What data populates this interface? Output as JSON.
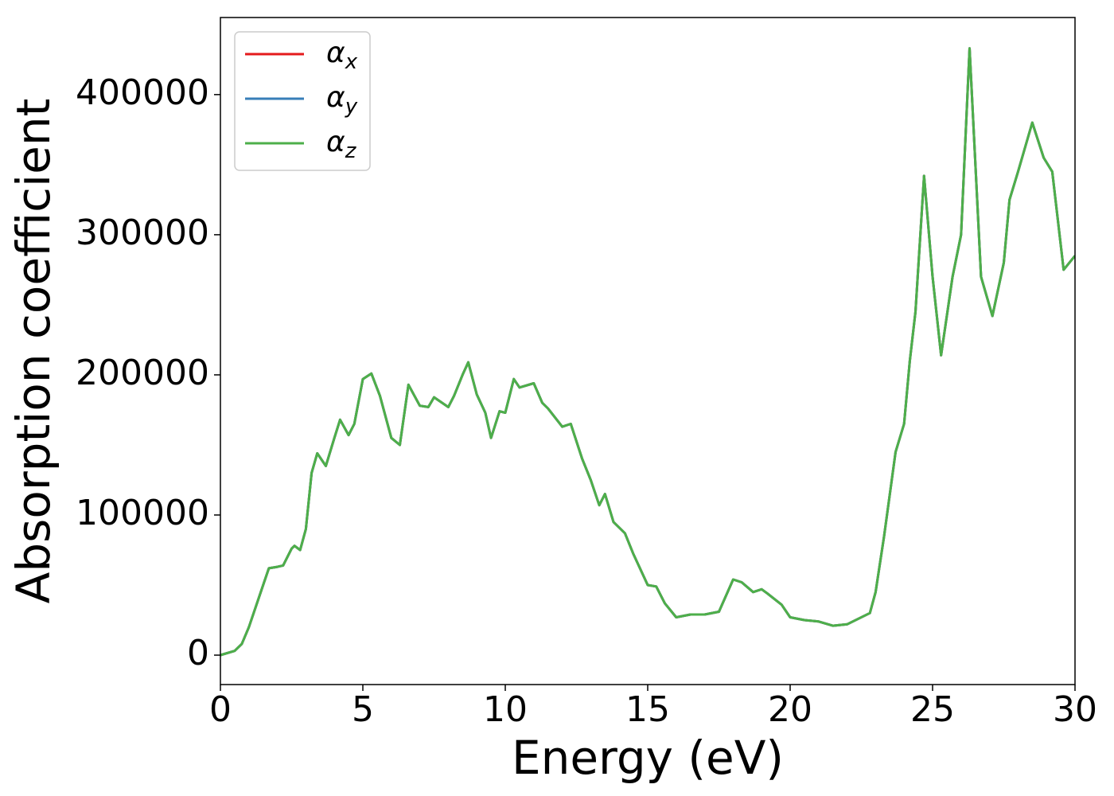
{
  "chart_data": {
    "type": "line",
    "xlabel": "Energy (eV)",
    "ylabel": "Absorption coefficient",
    "x": [
      0,
      0.5,
      0.75,
      1,
      1.5,
      1.7,
      2,
      2.2,
      2.5,
      2.6,
      2.8,
      3,
      3.2,
      3.4,
      3.7,
      4,
      4.2,
      4.5,
      4.7,
      5,
      5.3,
      5.6,
      6,
      6.3,
      6.6,
      7,
      7.3,
      7.5,
      8,
      8.2,
      8.5,
      8.7,
      9,
      9.3,
      9.5,
      9.8,
      10,
      10.3,
      10.5,
      11,
      11.3,
      11.5,
      12,
      12.3,
      12.7,
      13,
      13.3,
      13.5,
      13.8,
      14.2,
      14.5,
      15,
      15.3,
      15.6,
      16,
      16.5,
      17,
      17.5,
      18,
      18.3,
      18.7,
      19,
      19.2,
      19.7,
      20,
      20.5,
      21,
      21.5,
      22,
      22.8,
      23,
      23.3,
      23.7,
      24,
      24.2,
      24.4,
      24.7,
      25,
      25.3,
      25.7,
      26,
      26.3,
      26.7,
      27.1,
      27.5,
      27.7,
      28,
      28.5,
      28.9,
      29.2,
      29.6,
      30
    ],
    "series": [
      {
        "name": "αx",
        "color": "#e41a1c",
        "values": [
          0,
          3000,
          8000,
          20000,
          50000,
          62000,
          63000,
          64000,
          76000,
          78000,
          75000,
          90000,
          130000,
          144000,
          135000,
          155000,
          168000,
          157000,
          165000,
          197000,
          201000,
          185000,
          155000,
          150000,
          193000,
          178000,
          177000,
          184000,
          177000,
          185000,
          200000,
          209000,
          186000,
          173000,
          155000,
          174000,
          173000,
          197000,
          191000,
          194000,
          180000,
          176000,
          163000,
          165000,
          140000,
          125000,
          107000,
          115000,
          95000,
          87000,
          72000,
          50000,
          49000,
          37000,
          27000,
          29000,
          29000,
          31000,
          54000,
          52000,
          45000,
          47000,
          44000,
          36000,
          27000,
          25000,
          24000,
          21000,
          22000,
          30000,
          45000,
          85000,
          145000,
          165000,
          210000,
          245000,
          342000,
          270000,
          214000,
          270000,
          300000,
          433000,
          270000,
          242000,
          280000,
          325000,
          345000,
          380000,
          355000,
          345000,
          275000,
          285000
        ]
      },
      {
        "name": "αy",
        "color": "#377eb8",
        "values": [
          0,
          3000,
          8000,
          20000,
          50000,
          62000,
          63000,
          64000,
          76000,
          78000,
          75000,
          90000,
          130000,
          144000,
          135000,
          155000,
          168000,
          157000,
          165000,
          197000,
          201000,
          185000,
          155000,
          150000,
          193000,
          178000,
          177000,
          184000,
          177000,
          185000,
          200000,
          209000,
          186000,
          173000,
          155000,
          174000,
          173000,
          197000,
          191000,
          194000,
          180000,
          176000,
          163000,
          165000,
          140000,
          125000,
          107000,
          115000,
          95000,
          87000,
          72000,
          50000,
          49000,
          37000,
          27000,
          29000,
          29000,
          31000,
          54000,
          52000,
          45000,
          47000,
          44000,
          36000,
          27000,
          25000,
          24000,
          21000,
          22000,
          30000,
          45000,
          85000,
          145000,
          165000,
          210000,
          245000,
          342000,
          270000,
          214000,
          270000,
          300000,
          433000,
          270000,
          242000,
          280000,
          325000,
          345000,
          380000,
          355000,
          345000,
          275000,
          285000
        ]
      },
      {
        "name": "αz",
        "color": "#4daf4a",
        "values": [
          0,
          3000,
          8000,
          20000,
          50000,
          62000,
          63000,
          64000,
          76000,
          78000,
          75000,
          90000,
          130000,
          144000,
          135000,
          155000,
          168000,
          157000,
          165000,
          197000,
          201000,
          185000,
          155000,
          150000,
          193000,
          178000,
          177000,
          184000,
          177000,
          185000,
          200000,
          209000,
          186000,
          173000,
          155000,
          174000,
          173000,
          197000,
          191000,
          194000,
          180000,
          176000,
          163000,
          165000,
          140000,
          125000,
          107000,
          115000,
          95000,
          87000,
          72000,
          50000,
          49000,
          37000,
          27000,
          29000,
          29000,
          31000,
          54000,
          52000,
          45000,
          47000,
          44000,
          36000,
          27000,
          25000,
          24000,
          21000,
          22000,
          30000,
          45000,
          85000,
          145000,
          165000,
          210000,
          245000,
          342000,
          270000,
          214000,
          270000,
          300000,
          433000,
          270000,
          242000,
          280000,
          325000,
          345000,
          380000,
          355000,
          345000,
          275000,
          285000
        ]
      }
    ],
    "xlim": [
      0,
      30
    ],
    "xticks": [
      0,
      5,
      10,
      15,
      20,
      25,
      30
    ],
    "ylim": [
      -21000,
      455000
    ],
    "yticks": [
      0,
      100000,
      200000,
      300000,
      400000
    ],
    "grid": false,
    "legend": "upper left"
  }
}
